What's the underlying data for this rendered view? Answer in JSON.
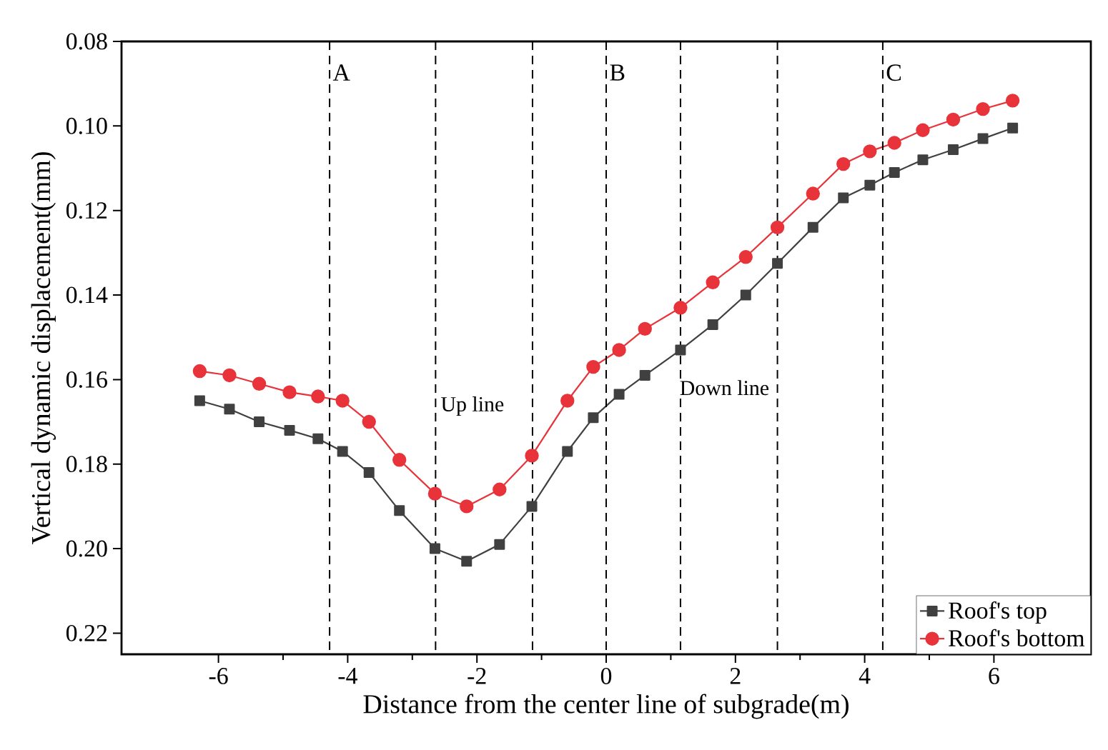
{
  "chart_data": {
    "type": "line",
    "xlabel": "Distance from the center line of subgrade(m)",
    "ylabel": "Vertical dynamic displacement(mm)",
    "x": [
      -6.29,
      -5.83,
      -5.37,
      -4.9,
      -4.46,
      -4.08,
      -3.67,
      -3.2,
      -2.65,
      -2.16,
      -1.65,
      -1.15,
      -0.6,
      -0.2,
      0.2,
      0.6,
      1.15,
      1.65,
      2.16,
      2.65,
      3.2,
      3.67,
      4.08,
      4.46,
      4.9,
      5.37,
      5.83,
      6.29
    ],
    "series": [
      {
        "name": "Roof's top",
        "color": "#404040",
        "marker": "square",
        "values": [
          0.165,
          0.167,
          0.17,
          0.172,
          0.174,
          0.177,
          0.182,
          0.191,
          0.2,
          0.203,
          0.199,
          0.19,
          0.177,
          0.169,
          0.1635,
          0.159,
          0.153,
          0.147,
          0.14,
          0.1325,
          0.124,
          0.117,
          0.114,
          0.111,
          0.108,
          0.1056,
          0.103,
          0.1005
        ]
      },
      {
        "name": "Roof's bottom",
        "color": "#e8333a",
        "marker": "circle",
        "values": [
          0.158,
          0.159,
          0.161,
          0.163,
          0.164,
          0.165,
          0.17,
          0.179,
          0.187,
          0.19,
          0.186,
          0.178,
          0.165,
          0.157,
          0.153,
          0.148,
          0.143,
          0.137,
          0.131,
          0.124,
          0.116,
          0.109,
          0.106,
          0.104,
          0.101,
          0.0985,
          0.096,
          0.094
        ]
      }
    ],
    "xlim": [
      -7.5,
      7.5
    ],
    "xticks": [
      -6,
      -4,
      -2,
      0,
      2,
      4,
      6
    ],
    "ylim": [
      0.225,
      0.08
    ],
    "yticks": [
      0.08,
      {
        "value": 0.1,
        "label": "0.10"
      },
      0.12,
      0.14,
      0.16,
      0.18,
      {
        "value": 0.2,
        "label": "0.20"
      },
      0.22
    ],
    "ref_lines": [
      {
        "axis": "x",
        "value": -4.28,
        "label": "A",
        "line_style": "dashed"
      },
      {
        "axis": "x",
        "value": -2.64,
        "line_style": "dashed"
      },
      {
        "axis": "x",
        "value": -1.14,
        "line_style": "dashed"
      },
      {
        "axis": "x",
        "value": 0,
        "label": "B",
        "line_style": "dashed"
      },
      {
        "axis": "x",
        "value": 1.15,
        "line_style": "dashed"
      },
      {
        "axis": "x",
        "value": 2.65,
        "line_style": "dashed"
      },
      {
        "axis": "x",
        "value": 4.28,
        "label": "C",
        "line_style": "dashed"
      }
    ],
    "annotations": [
      "Up line",
      "Down line"
    ],
    "legend": "bottom right",
    "grid": false
  }
}
